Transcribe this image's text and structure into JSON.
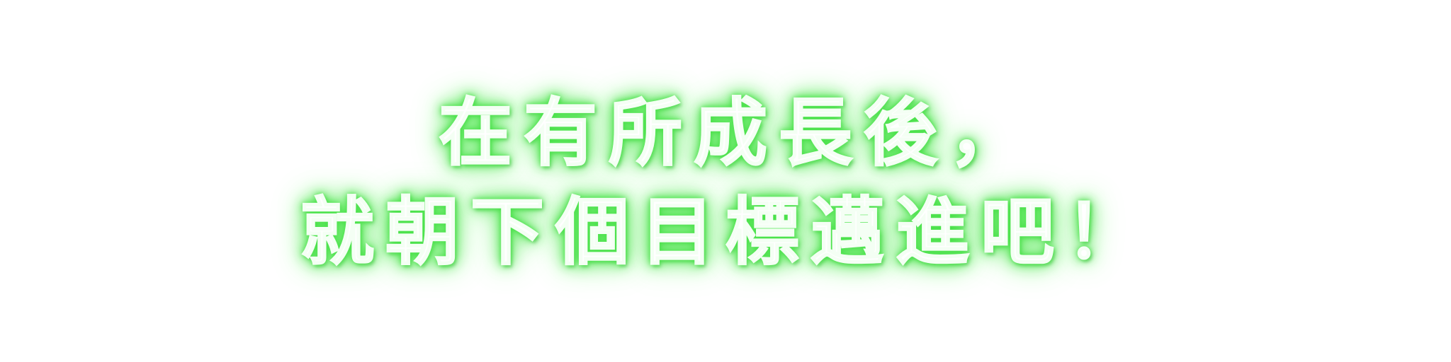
{
  "caption": {
    "line1": "在有所成長後，",
    "line2": "就朝下個目標邁進吧！"
  },
  "colors": {
    "background": "#ffffff",
    "text": "#ffffff",
    "glow": "#3fdc3f"
  }
}
